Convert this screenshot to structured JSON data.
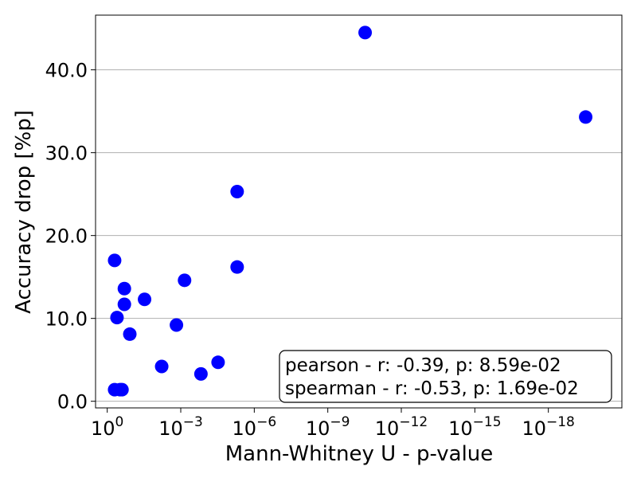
{
  "chart_data": {
    "type": "scatter",
    "title": "",
    "xlabel": "Mann-Whitney U - p-value",
    "ylabel": "Accuracy drop [%p]",
    "x_scale": "log",
    "x_axis_reversed": true,
    "xlim": [
      3.0,
      1e-21
    ],
    "ylim": [
      -0.8,
      46.6
    ],
    "x_ticks": [
      {
        "value": 1,
        "base": "10",
        "exp": "0"
      },
      {
        "value": 0.001,
        "base": "10",
        "exp": "−3"
      },
      {
        "value": 1e-06,
        "base": "10",
        "exp": "−6"
      },
      {
        "value": 1e-09,
        "base": "10",
        "exp": "−9"
      },
      {
        "value": 1e-12,
        "base": "10",
        "exp": "−12"
      },
      {
        "value": 1e-15,
        "base": "10",
        "exp": "−15"
      },
      {
        "value": 1e-18,
        "base": "10",
        "exp": "−18"
      }
    ],
    "y_ticks": [
      {
        "value": 0,
        "label": "0.0"
      },
      {
        "value": 10,
        "label": "10.0"
      },
      {
        "value": 20,
        "label": "20.0"
      },
      {
        "value": 30,
        "label": "30.0"
      },
      {
        "value": 40,
        "label": "40.0"
      }
    ],
    "grid": {
      "y": true,
      "x": false
    },
    "marker_color": "#0000ff",
    "points": [
      {
        "x": 0.5,
        "y": 17.0
      },
      {
        "x": 0.5,
        "y": 1.4
      },
      {
        "x": 0.4,
        "y": 10.1
      },
      {
        "x": 0.3,
        "y": 1.4
      },
      {
        "x": 0.25,
        "y": 1.4
      },
      {
        "x": 0.2,
        "y": 11.7
      },
      {
        "x": 0.2,
        "y": 13.6
      },
      {
        "x": 0.12,
        "y": 8.1
      },
      {
        "x": 0.03,
        "y": 12.3
      },
      {
        "x": 0.006,
        "y": 4.2
      },
      {
        "x": 0.0015,
        "y": 9.2
      },
      {
        "x": 0.0007,
        "y": 14.6
      },
      {
        "x": 0.00015,
        "y": 3.3
      },
      {
        "x": 3e-05,
        "y": 4.7
      },
      {
        "x": 5e-06,
        "y": 25.3
      },
      {
        "x": 5e-06,
        "y": 16.2
      },
      {
        "x": 3e-11,
        "y": 44.5
      },
      {
        "x": 3e-20,
        "y": 34.3
      }
    ],
    "annotation": {
      "lines": [
        "pearson - r: -0.39, p: 8.59e-02",
        "spearman - r: -0.53, p: 1.69e-02"
      ],
      "placement": "bottom-right"
    }
  }
}
